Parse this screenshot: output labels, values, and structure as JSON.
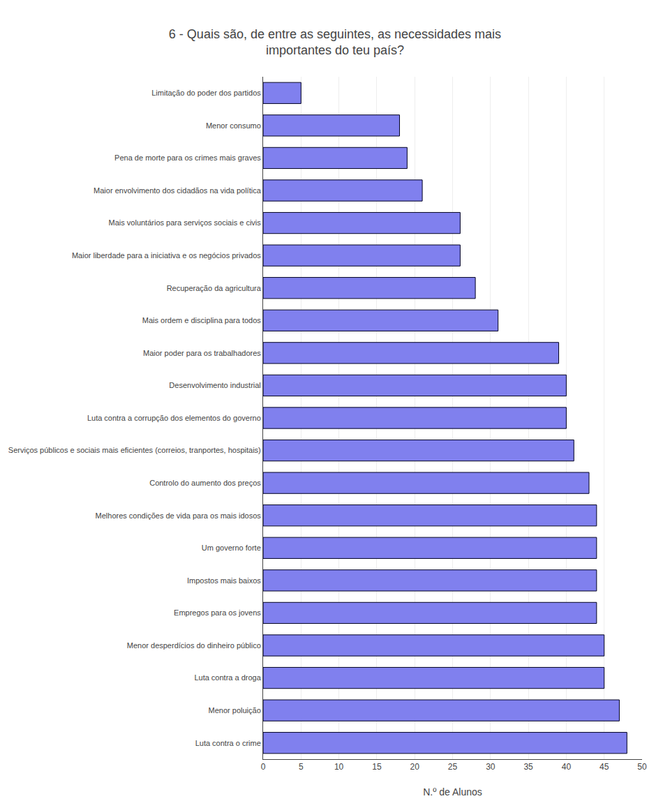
{
  "chart_data": {
    "type": "bar",
    "orientation": "horizontal",
    "title": "6 - Quais são, de entre as seguintes, as necessidades mais\nimportantes do teu país?",
    "xlabel": "N.º de Alunos",
    "categories": [
      "Luta contra o crime",
      "Menor poluição",
      "Luta contra a droga",
      "Menor desperdícios do dinheiro público",
      "Empregos para os jovens",
      "Impostos mais baixos",
      "Um governo forte",
      "Melhores condições de vida para os mais idosos",
      "Controlo do aumento dos preços",
      "Serviços públicos e sociais mais eficientes (correios, tranportes, hospitais)",
      "Luta contra a corrupção dos elementos do governo",
      "Desenvolvimento industrial",
      "Maior poder para os trabalhadores",
      "Mais ordem e disciplina para todos",
      "Recuperação da agricultura",
      "Maior liberdade para a iniciativa e os negócios privados",
      "Mais voluntários para serviços sociais e civis",
      "Maior envolvimento dos cidadãos na vida política",
      "Pena de morte para os crimes mais graves",
      "Menor consumo",
      "Limitação do poder dos partidos"
    ],
    "values": [
      48,
      47,
      45,
      45,
      44,
      44,
      44,
      44,
      43,
      41,
      40,
      40,
      39,
      31,
      28,
      26,
      26,
      21,
      19,
      18,
      5
    ],
    "color": "#8080ee",
    "xlim": [
      0,
      50
    ],
    "xticks": [
      0,
      5,
      10,
      15,
      20,
      25,
      30,
      35,
      40,
      45,
      50
    ],
    "grid": true
  }
}
